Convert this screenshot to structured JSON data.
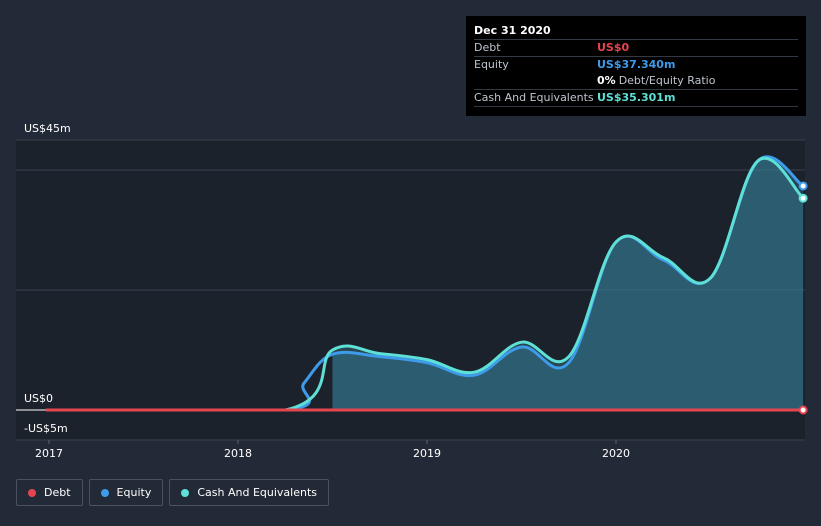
{
  "tooltip": {
    "date": "Dec 31 2020",
    "rows": [
      {
        "key": "Debt",
        "value": "US$0",
        "color": "#e64550"
      },
      {
        "key": "Equity",
        "value": "US$37.340m",
        "color": "#3d9be9"
      },
      {
        "key": "",
        "value": "0%",
        "suffix": "Debt/Equity Ratio",
        "color": "#ffffff"
      },
      {
        "key": "Cash And Equivalents",
        "value": "US$35.301m",
        "color": "#5ee0d6"
      }
    ]
  },
  "legend": [
    {
      "label": "Debt",
      "color": "#e64550"
    },
    {
      "label": "Equity",
      "color": "#3d9be9"
    },
    {
      "label": "Cash And Equivalents",
      "color": "#5ee0d6"
    }
  ],
  "chart_data": {
    "type": "area",
    "title": "",
    "xlabel": "",
    "ylabel": "",
    "ylim": [
      -5,
      45
    ],
    "y_tick_labels": [
      {
        "value": 45,
        "label": "US$45m"
      },
      {
        "value": 0,
        "label": "US$0"
      },
      {
        "value": -5,
        "label": "-US$5m"
      }
    ],
    "x_ticks": [
      {
        "value": 2017.0,
        "label": "2017"
      },
      {
        "value": 2018.0,
        "label": "2018"
      },
      {
        "value": 2019.0,
        "label": "2019"
      },
      {
        "value": 2020.0,
        "label": "2020"
      }
    ],
    "highlight_from": 2018.5,
    "series": [
      {
        "name": "Debt",
        "color": "#e64550",
        "x": [
          2016.99,
          2020.99
        ],
        "values": [
          0,
          0
        ]
      },
      {
        "name": "Equity",
        "color": "#3d9be9",
        "x": [
          2016.99,
          2018.25,
          2018.35,
          2018.5,
          2018.75,
          2019.0,
          2019.25,
          2019.5,
          2019.75,
          2020.0,
          2020.25,
          2020.5,
          2020.75,
          2020.99
        ],
        "values": [
          0,
          0,
          4.5,
          9.3,
          8.9,
          7.9,
          5.8,
          10.5,
          7.9,
          28.0,
          25.0,
          22.0,
          41.5,
          37.34
        ]
      },
      {
        "name": "Cash And Equivalents",
        "color": "#5ee0d6",
        "x": [
          2016.99,
          2018.25,
          2018.5,
          2018.75,
          2019.0,
          2019.25,
          2019.5,
          2019.75,
          2020.0,
          2020.25,
          2020.5,
          2020.75,
          2020.99
        ],
        "values": [
          0,
          0,
          10.0,
          9.4,
          8.4,
          6.3,
          11.3,
          8.9,
          28.0,
          25.4,
          22.0,
          41.5,
          35.301
        ]
      }
    ]
  }
}
